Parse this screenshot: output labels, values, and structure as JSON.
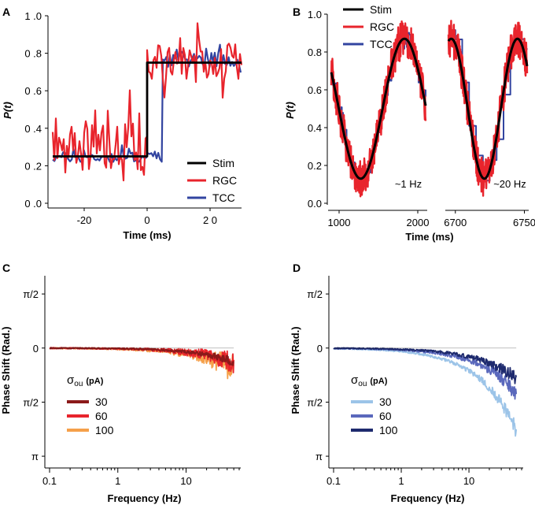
{
  "chart_data": [
    {
      "panel": "A",
      "type": "line",
      "xlabel": "Time (ms)",
      "ylabel": "P(t)",
      "xlim": [
        -30,
        30
      ],
      "ylim": [
        0,
        1
      ],
      "xticks": [
        {
          "v": -20,
          "label": "-20"
        },
        {
          "v": 0,
          "label": "0"
        },
        {
          "v": 20,
          "label": "2 0"
        }
      ],
      "yticks": [
        {
          "v": 0,
          "label": "0 .0"
        },
        {
          "v": 0.2,
          "label": "0 .2"
        },
        {
          "v": 0.4,
          "label": "0 .4"
        },
        {
          "v": 0.6,
          "label": "0 .6"
        },
        {
          "v": 0.8,
          "label": "0 .8"
        },
        {
          "v": 1.0,
          "label": "1 .0"
        }
      ],
      "legend": [
        {
          "label": "Stim",
          "color": "#000000"
        },
        {
          "label": "RGC",
          "color": "#e8242c"
        },
        {
          "label": "TCC",
          "color": "#3244a0"
        }
      ],
      "series": [
        {
          "name": "Stim",
          "type": "step",
          "x": [
            -30,
            0,
            0,
            30
          ],
          "y": [
            0.25,
            0.25,
            0.75,
            0.75
          ]
        },
        {
          "name": "RGC",
          "noisy_before": {
            "x0": -30,
            "x1": 0,
            "mean": 0.27,
            "amp": 0.38
          },
          "noisy_after": {
            "x0": 0,
            "x1": 30,
            "mean": 0.74,
            "amp": 0.28
          }
        },
        {
          "name": "TCC",
          "noisy_before": {
            "x0": -30,
            "x1": 5,
            "mean": 0.24,
            "amp": 0.08
          },
          "noisy_after": {
            "x0": 5,
            "x1": 30,
            "mean": 0.76,
            "amp": 0.12
          }
        }
      ]
    },
    {
      "panel": "B",
      "type": "line",
      "xlabel": "Time (ms)",
      "ylabel": "P(t)",
      "ylim": [
        0,
        1
      ],
      "yticks": [
        {
          "v": 0,
          "label": "0.0"
        },
        {
          "v": 0.2,
          "label": "0.2"
        },
        {
          "v": 0.4,
          "label": "0.4"
        },
        {
          "v": 0.6,
          "label": "0.6"
        },
        {
          "v": 0.8,
          "label": "0.8"
        },
        {
          "v": 1.0,
          "label": "1.0"
        }
      ],
      "segments": [
        {
          "xlim": [
            900,
            2100
          ],
          "xticks": [
            {
              "v": 1000,
              "label": "1000"
            },
            {
              "v": 2000,
              "label": "2000"
            }
          ],
          "annotation": "~1 Hz",
          "freq_hz": 1
        },
        {
          "xlim": [
            6695,
            6752
          ],
          "xticks": [
            {
              "v": 6700,
              "label": "6700"
            },
            {
              "v": 6750,
              "label": "6750"
            }
          ],
          "annotation": "~20 Hz",
          "freq_hz": 20
        }
      ],
      "stim": {
        "mean": 0.5,
        "amplitude": 0.37
      },
      "legend": [
        {
          "label": "Stim",
          "color": "#000000"
        },
        {
          "label": "RGC",
          "color": "#e8242c"
        },
        {
          "label": "TCC",
          "color": "#3244a0"
        }
      ]
    },
    {
      "panel": "C",
      "type": "line",
      "xscale": "log",
      "xlabel": "Frequency (Hz)",
      "ylabel": "Phase Shift (Rad.)",
      "xlim": [
        0.1,
        60
      ],
      "ylim": [
        -3.3,
        2.1
      ],
      "xticks": [
        {
          "v": 0.1,
          "label": "0.1"
        },
        {
          "v": 1,
          "label": "1"
        },
        {
          "v": 10,
          "label": "10"
        }
      ],
      "yticks": [
        {
          "v": 1.5708,
          "label": "π/2"
        },
        {
          "v": 0,
          "label": "0"
        },
        {
          "v": -1.5708,
          "label": "π/2"
        },
        {
          "v": -3.1416,
          "label": "π"
        }
      ],
      "legend_title": "σou (pA)",
      "legend_title_main": "σ",
      "legend_title_sub": "ou",
      "legend_title_unit": "(pA)",
      "series": [
        {
          "name": "100",
          "color": "#f5a04a",
          "drop": 0.6,
          "noise": 1.0
        },
        {
          "name": "60",
          "color": "#e8242c",
          "drop": 0.45,
          "noise": 0.85
        },
        {
          "name": "30",
          "color": "#8b1a1a",
          "drop": 0.4,
          "noise": 0.3
        }
      ]
    },
    {
      "panel": "D",
      "type": "line",
      "xscale": "log",
      "xlabel": "Frequency (Hz)",
      "ylabel": "Phase Shift (Rad.)",
      "xlim": [
        0.1,
        60
      ],
      "ylim": [
        -3.3,
        2.1
      ],
      "xticks": [
        {
          "v": 0.1,
          "label": "0.1"
        },
        {
          "v": 1,
          "label": "1"
        },
        {
          "v": 10,
          "label": "10"
        }
      ],
      "yticks": [
        {
          "v": 1.5708,
          "label": "π/2"
        },
        {
          "v": 0,
          "label": "0"
        },
        {
          "v": -1.5708,
          "label": "π/2"
        },
        {
          "v": -3.1416,
          "label": "π"
        }
      ],
      "legend_title": "σou (pA)",
      "legend_title_main": "σ",
      "legend_title_sub": "ou",
      "legend_title_unit": "(pA)",
      "series": [
        {
          "name": "30",
          "color": "#9cc4e8",
          "drop": 2.4,
          "noise": 0.5
        },
        {
          "name": "60",
          "color": "#5a68bc",
          "drop": 1.3,
          "noise": 0.6
        },
        {
          "name": "100",
          "color": "#1e2a6e",
          "drop": 0.9,
          "noise": 0.5
        }
      ]
    }
  ]
}
